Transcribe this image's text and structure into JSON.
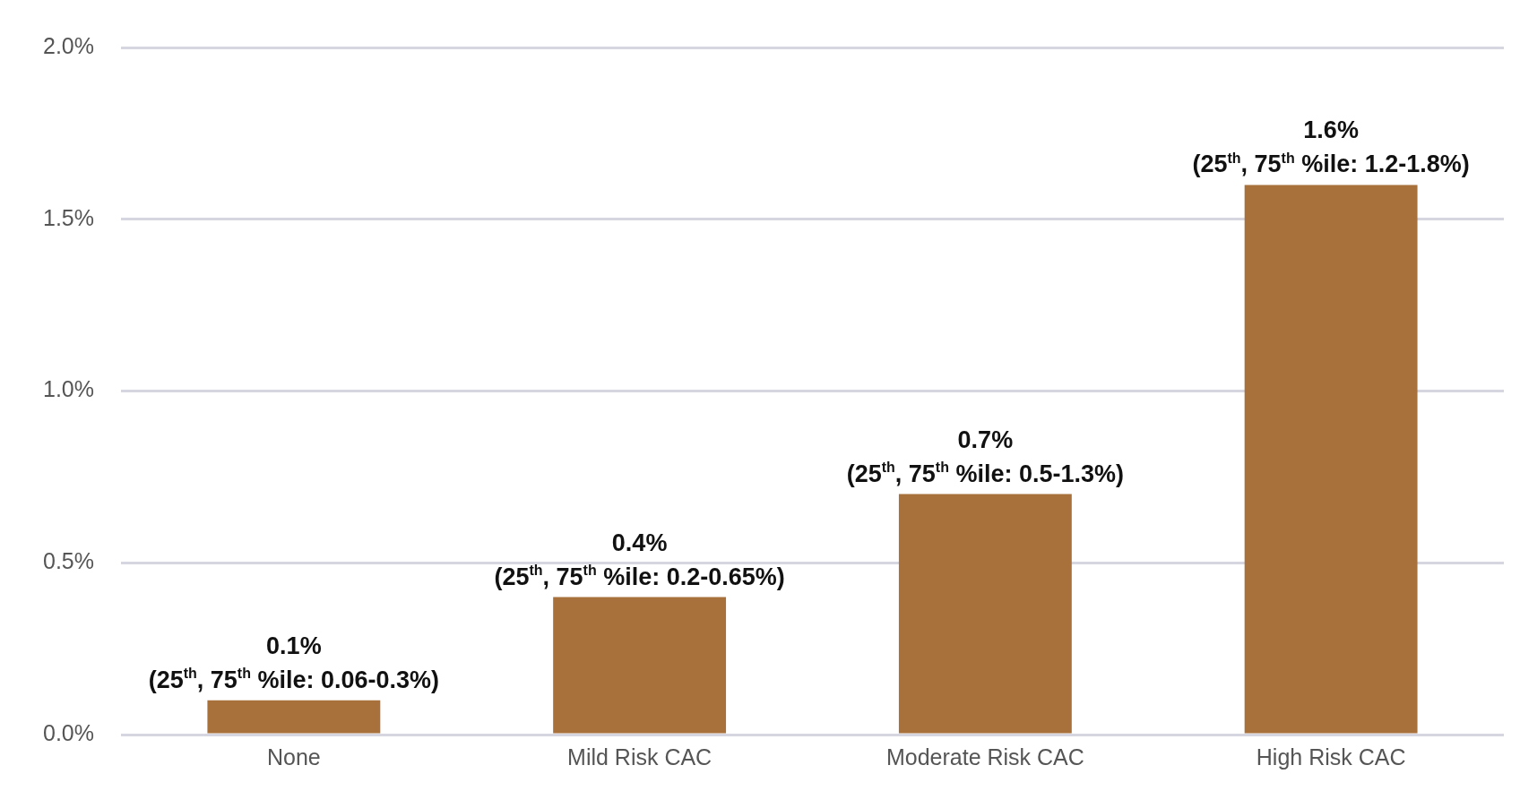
{
  "chart_data": {
    "type": "bar",
    "categories": [
      "None",
      "Mild Risk CAC",
      "Moderate Risk CAC",
      "High Risk CAC"
    ],
    "values": [
      0.1,
      0.4,
      0.7,
      1.6
    ],
    "color": "#a8703a",
    "value_labels": [
      "0.1%",
      "0.4%",
      "0.7%",
      "1.6%"
    ],
    "annotations": [
      {
        "text": "(25$^{th}$, 75$^{th}$ %ile: 0.06-0.3%)",
        "x": "None",
        "y": 0.1
      },
      {
        "text": "(25$^{th}$, 75$^{th}$ %ile: 0.2-0.65%)",
        "x": "Mild Risk CAC",
        "y": 0.4
      },
      {
        "text": "(25$^{th}$, 75$^{th}$ %ile: 0.5-1.3%)",
        "x": "Moderate Risk CAC",
        "y": 0.7
      },
      {
        "text": "(25$^{th}$, 75$^{th}$ %ile: 1.2-1.8%)",
        "x": "High Risk CAC",
        "y": 1.6
      }
    ],
    "ylim": [
      0,
      2
    ],
    "yticks": [
      {
        "value": 0,
        "label": "0.0%"
      },
      {
        "value": 0.5,
        "label": "0.5%"
      },
      {
        "value": 1,
        "label": "1.0%"
      },
      {
        "value": 1.5,
        "label": "1.5%"
      },
      {
        "value": 2,
        "label": "2.0%"
      }
    ],
    "grid": "y",
    "legend": false
  }
}
